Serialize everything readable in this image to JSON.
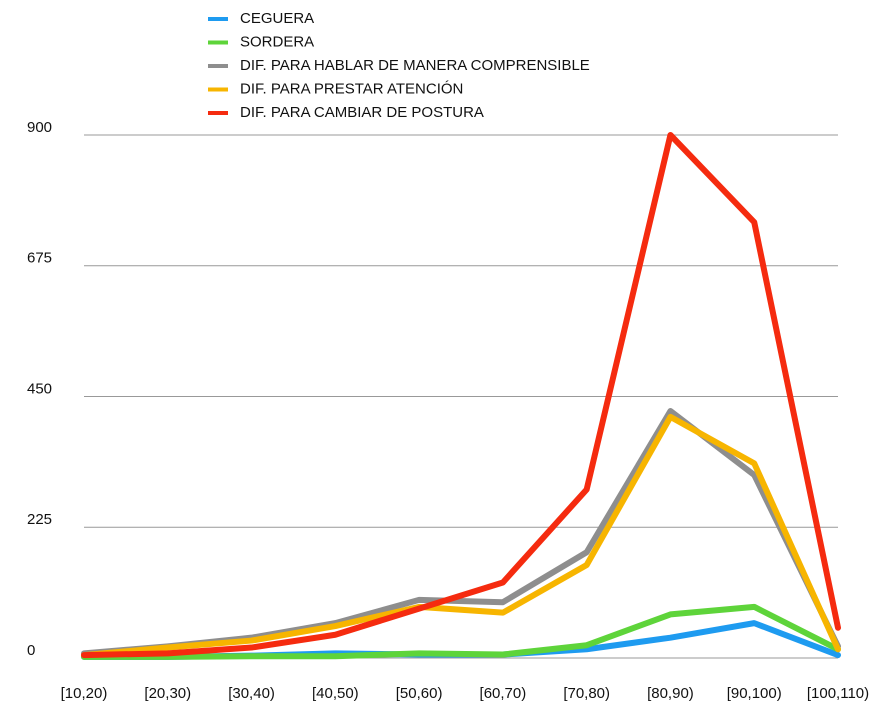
{
  "chart_data": {
    "type": "line",
    "categories": [
      "[10,20)",
      "[20,30)",
      "[30,40)",
      "[40,50)",
      "[50,60)",
      "[60,70)",
      "[70,80)",
      "[80,90)",
      "[90,100)",
      "[100,110)"
    ],
    "series": [
      {
        "name": "CEGUERA",
        "color": "#1e9bf0",
        "values": [
          2,
          2,
          4,
          8,
          6,
          6,
          15,
          35,
          60,
          5
        ]
      },
      {
        "name": "SORDERA",
        "color": "#5ed43a",
        "values": [
          2,
          2,
          3,
          3,
          8,
          6,
          22,
          75,
          88,
          15
        ]
      },
      {
        "name": "DIF. PARA HABLAR DE MANERA COMPRENSIBLE",
        "color": "#8e8e8e",
        "values": [
          8,
          20,
          35,
          60,
          100,
          96,
          182,
          425,
          315,
          20
        ]
      },
      {
        "name": "DIF. PARA PRESTAR ATENCIÓN",
        "color": "#f7b500",
        "values": [
          5,
          18,
          30,
          55,
          88,
          78,
          160,
          415,
          335,
          15
        ]
      },
      {
        "name": "DIF. PARA CAMBIAR DE POSTURA",
        "color": "#f52b0f",
        "values": [
          5,
          8,
          18,
          40,
          85,
          130,
          290,
          900,
          750,
          52
        ]
      }
    ],
    "ylim": [
      0,
      900
    ],
    "yticks": [
      0,
      225,
      450,
      675,
      900
    ],
    "grid": true,
    "legend": "top"
  }
}
